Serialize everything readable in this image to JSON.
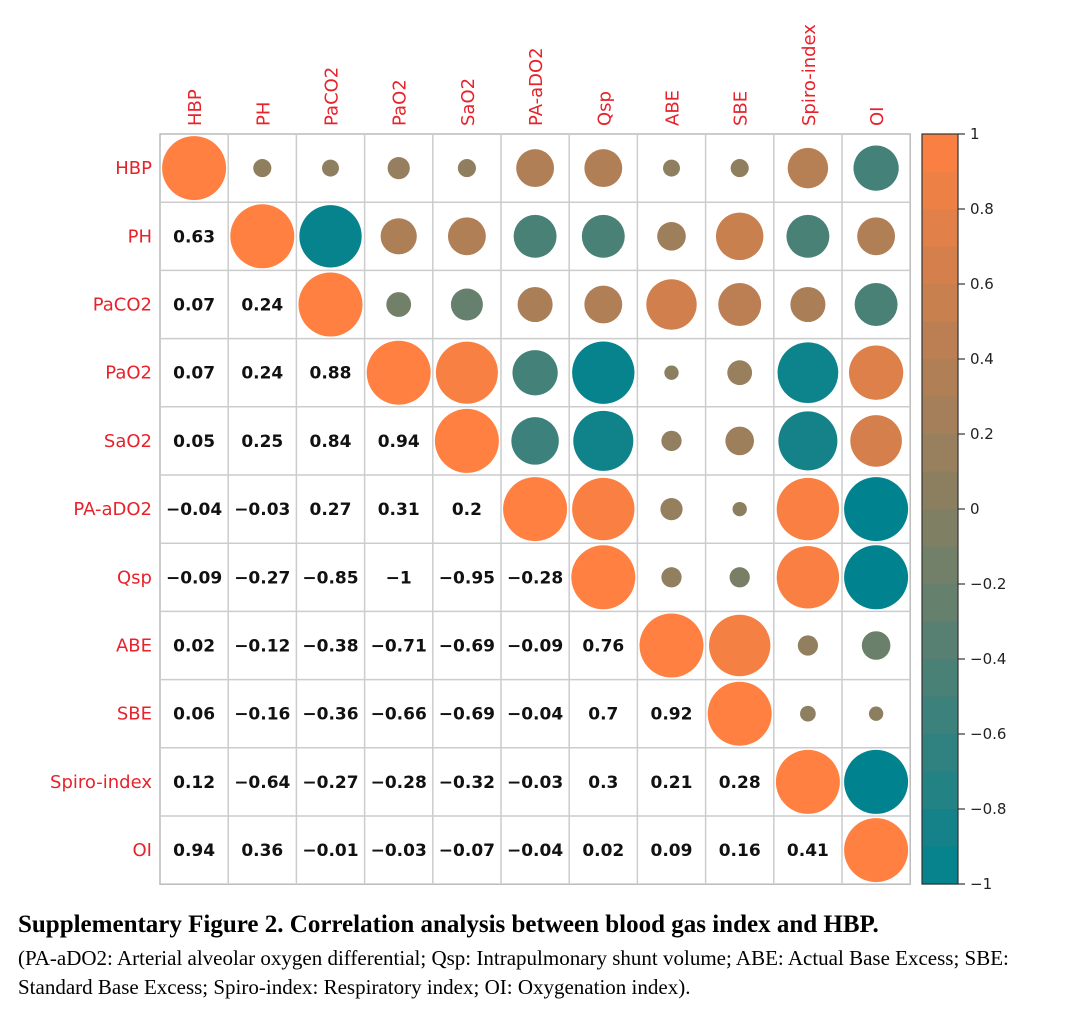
{
  "chart_data": {
    "type": "heatmap",
    "variables": [
      "HBP",
      "PH",
      "PaCO2",
      "PaO2",
      "SaO2",
      "PA-aDO2",
      "Qsp",
      "ABE",
      "SBE",
      "Spiro-index",
      "OI"
    ],
    "lower_display": [
      [
        "",
        "",
        "",
        "",
        "",
        "",
        "",
        "",
        "",
        "",
        ""
      ],
      [
        "0.63",
        "",
        "",
        "",
        "",
        "",
        "",
        "",
        "",
        "",
        ""
      ],
      [
        "0.07",
        "0.24",
        "",
        "",
        "",
        "",
        "",
        "",
        "",
        "",
        ""
      ],
      [
        "0.07",
        "0.24",
        "0.88",
        "",
        "",
        "",
        "",
        "",
        "",
        "",
        ""
      ],
      [
        "0.05",
        "0.25",
        "0.84",
        "0.94",
        "",
        "",
        "",
        "",
        "",
        "",
        ""
      ],
      [
        "−0.04",
        "−0.03",
        "0.27",
        "0.31",
        "0.2",
        "",
        "",
        "",
        "",
        "",
        ""
      ],
      [
        "−0.09",
        "−0.27",
        "−0.85",
        "−1",
        "−0.95",
        "−0.28",
        "",
        "",
        "",
        "",
        ""
      ],
      [
        "0.02",
        "−0.12",
        "−0.38",
        "−0.71",
        "−0.69",
        "−0.09",
        "0.76",
        "",
        "",
        "",
        ""
      ],
      [
        "0.06",
        "−0.16",
        "−0.36",
        "−0.66",
        "−0.69",
        "−0.04",
        "0.7",
        "0.92",
        "",
        "",
        ""
      ],
      [
        "0.12",
        "−0.64",
        "−0.27",
        "−0.28",
        "−0.32",
        "−0.03",
        "0.3",
        "0.21",
        "0.28",
        "",
        ""
      ],
      [
        "0.94",
        "0.36",
        "−0.01",
        "−0.03",
        "−0.07",
        "−0.04",
        "0.02",
        "0.09",
        "0.16",
        "0.41",
        ""
      ]
    ],
    "upper_values": [
      [
        1.0,
        0.08,
        0.07,
        0.12,
        0.08,
        0.35,
        0.35,
        0.07,
        0.08,
        0.4,
        -0.5
      ],
      [
        null,
        1.0,
        -0.95,
        0.32,
        0.35,
        -0.45,
        -0.45,
        0.2,
        0.55,
        -0.45,
        0.35
      ],
      [
        null,
        null,
        1.0,
        -0.15,
        -0.25,
        0.3,
        0.35,
        0.62,
        0.45,
        0.3,
        -0.45
      ],
      [
        null,
        null,
        null,
        1.0,
        0.94,
        -0.5,
        -0.95,
        0.05,
        0.15,
        -0.9,
        0.72
      ],
      [
        null,
        null,
        null,
        null,
        1.0,
        -0.55,
        -0.88,
        0.1,
        0.2,
        -0.85,
        0.65
      ],
      [
        null,
        null,
        null,
        null,
        null,
        1.0,
        0.95,
        0.12,
        0.05,
        0.95,
        -1.0
      ],
      [
        null,
        null,
        null,
        null,
        null,
        null,
        1.0,
        0.1,
        -0.1,
        0.95,
        -1.0
      ],
      [
        null,
        null,
        null,
        null,
        null,
        null,
        null,
        1.0,
        0.92,
        0.1,
        -0.2
      ],
      [
        null,
        null,
        null,
        null,
        null,
        null,
        null,
        null,
        1.0,
        0.06,
        0.05
      ],
      [
        null,
        null,
        null,
        null,
        null,
        null,
        null,
        null,
        null,
        1.0,
        -1.0
      ],
      [
        null,
        null,
        null,
        null,
        null,
        null,
        null,
        null,
        null,
        null,
        1.0
      ]
    ],
    "colorbar": {
      "range": [
        -1,
        1
      ],
      "ticks": [
        "1",
        "0.8",
        "0.6",
        "0.4",
        "0.2",
        "0",
        "−0.2",
        "−0.4",
        "−0.6",
        "−0.8",
        "−1"
      ],
      "tick_values": [
        1,
        0.8,
        0.6,
        0.4,
        0.2,
        0,
        -0.2,
        -0.4,
        -0.6,
        -0.8,
        -1
      ],
      "colors": [
        "#00838f",
        "#ff8040"
      ]
    },
    "grid": true,
    "legend_position": "right"
  },
  "caption": {
    "title": "Supplementary Figure 2. Correlation analysis between blood gas index and HBP.",
    "text": "(PA-aDO2: Arterial alveolar oxygen differential; Qsp: Intrapulmonary shunt volume; ABE: Actual Base Excess; SBE: Standard Base Excess; Spiro-index: Respiratory index; OI: Oxygenation index)."
  }
}
